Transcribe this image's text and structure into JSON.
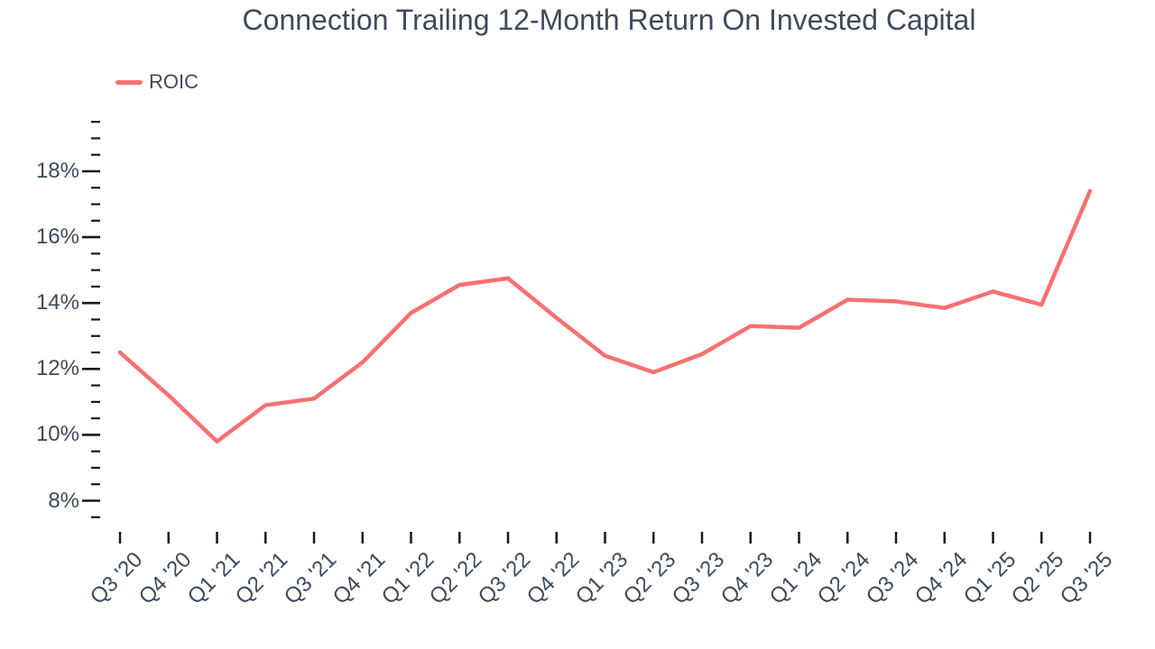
{
  "title": "Connection Trailing 12-Month Return On Invested Capital",
  "legend": {
    "label": "ROIC",
    "swatch_color": "#F87070"
  },
  "colors": {
    "line": "#F87070",
    "text": "#3E4A5B",
    "tick": "#191919",
    "background": "#FFFFFF"
  },
  "chart_data": {
    "type": "line",
    "title": "Connection Trailing 12-Month Return On Invested Capital",
    "categories": [
      "Q3 '20",
      "Q4 '20",
      "Q1 '21",
      "Q2 '21",
      "Q3 '21",
      "Q4 '21",
      "Q1 '22",
      "Q2 '22",
      "Q3 '22",
      "Q4 '22",
      "Q1 '23",
      "Q2 '23",
      "Q3 '23",
      "Q4 '23",
      "Q1 '24",
      "Q2 '24",
      "Q3 '24",
      "Q4 '24",
      "Q1 '25",
      "Q2 '25",
      "Q3 '25"
    ],
    "series": [
      {
        "name": "ROIC",
        "color": "#F87070",
        "values": [
          12.5,
          11.2,
          9.8,
          10.9,
          11.1,
          12.2,
          13.7,
          14.55,
          14.75,
          13.55,
          12.4,
          11.9,
          12.45,
          13.3,
          13.25,
          14.1,
          14.05,
          13.85,
          14.35,
          13.95,
          17.4
        ]
      }
    ],
    "xlabel": "",
    "ylabel": "",
    "y_axis": {
      "unit": "%",
      "min": 7.5,
      "max": 19.5,
      "major_tick_interval": 2,
      "minor_tick_interval": 0.5,
      "labeled_ticks": [
        "8%",
        "10%",
        "12%",
        "14%",
        "16%",
        "18%"
      ]
    },
    "grid": false,
    "legend_position": "top-left",
    "markers": false
  }
}
